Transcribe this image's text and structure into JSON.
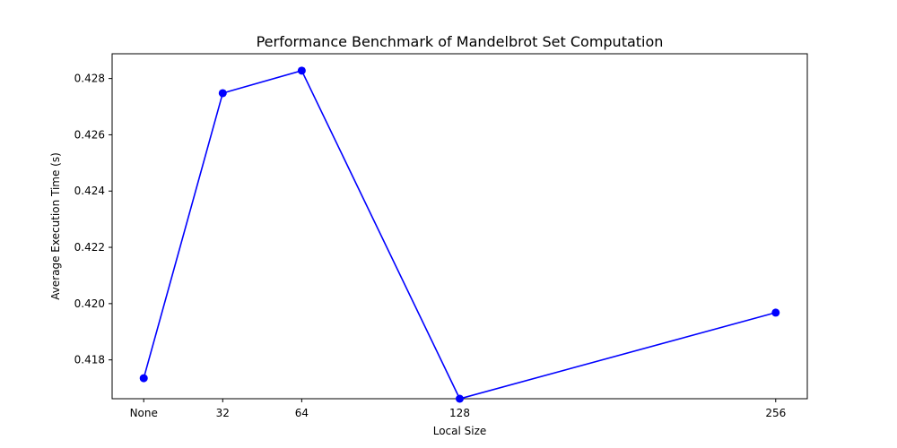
{
  "chart_data": {
    "type": "line",
    "title": "Performance Benchmark of Mandelbrot Set Computation",
    "xlabel": "Local Size",
    "ylabel": "Average Execution Time (s)",
    "categories": [
      "None",
      "32",
      "64",
      "128",
      "256"
    ],
    "x": [
      0,
      32,
      64,
      128,
      256
    ],
    "values": [
      0.41735,
      0.42748,
      0.42828,
      0.41662,
      0.41968
    ],
    "xlim": [
      -12.8,
      268.8
    ],
    "ylim": [
      0.41662,
      0.42888
    ],
    "yticks": [
      "0.418",
      "0.420",
      "0.422",
      "0.424",
      "0.426",
      "0.428"
    ],
    "ytick_values": [
      0.418,
      0.42,
      0.422,
      0.424,
      0.426,
      0.428
    ],
    "series_color": "#0000ff",
    "marker": "circle",
    "grid": false,
    "legend": "none"
  }
}
